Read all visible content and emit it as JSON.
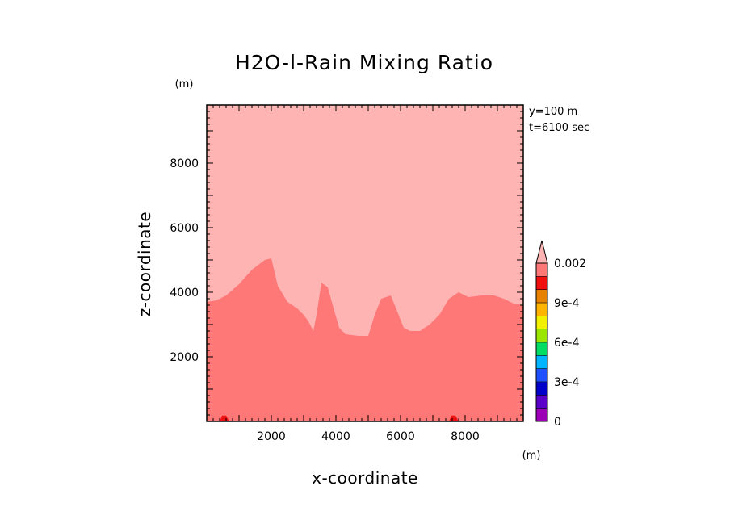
{
  "chart_data": {
    "type": "heatmap",
    "title": "H2O-l-Rain Mixing Ratio",
    "xlabel": "x-coordinate",
    "ylabel": "z-coordinate",
    "x_unit": "(m)",
    "y_unit": "(m)",
    "xlim": [
      0,
      9800
    ],
    "ylim": [
      0,
      9800
    ],
    "xticks": [
      "2000",
      "4000",
      "6000",
      "8000"
    ],
    "yticks": [
      "2000",
      "4000",
      "6000",
      "8000"
    ],
    "info_lines": [
      "y=100 m",
      "t=6100 sec"
    ],
    "contour_levels": [
      0,
      0.0001,
      0.0002,
      0.0003,
      0.0004,
      0.0005,
      0.0006,
      0.0007,
      0.0008,
      0.0009,
      0.001,
      0.0015,
      0.002
    ],
    "colorbar": {
      "labels": [
        {
          "text": "0.002",
          "value": 0.002
        },
        {
          "text": "9e-4",
          "value": 0.0009
        },
        {
          "text": "6e-4",
          "value": 0.0006
        },
        {
          "text": "3e-4",
          "value": 0.0003
        },
        {
          "text": "0",
          "value": 0
        }
      ],
      "colors": [
        "#9b00b4",
        "#5a00c8",
        "#0000c8",
        "#1e50ff",
        "#00b4ff",
        "#00dc64",
        "#9be600",
        "#f0f000",
        "#ffb400",
        "#e68200",
        "#f01010",
        "#ff7878",
        "#ffb4b4"
      ],
      "extend": "max"
    },
    "regions": [
      {
        "band": "0.0015-0.002",
        "color": "#ff7878",
        "boundary_x": [
          0,
          300,
          600,
          1000,
          1400,
          1800,
          2000,
          2200,
          2500,
          2800,
          3000,
          3150,
          3300,
          3400,
          3550,
          3750,
          3900,
          4100,
          4300,
          4700,
          5000,
          5200,
          5400,
          5700,
          5900,
          6100,
          6300,
          6600,
          6900,
          7200,
          7500,
          7800,
          8100,
          8500,
          8900,
          9200,
          9500,
          9800
        ],
        "boundary_z": [
          3700,
          3750,
          3900,
          4250,
          4700,
          5000,
          5050,
          4200,
          3700,
          3500,
          3300,
          3100,
          2800,
          3300,
          4300,
          4150,
          3600,
          2900,
          2700,
          2650,
          2650,
          3300,
          3800,
          3900,
          3400,
          2900,
          2800,
          2800,
          3000,
          3300,
          3800,
          4000,
          3850,
          3900,
          3900,
          3800,
          3650,
          3600
        ]
      },
      {
        "band": "0.001-0.0015",
        "color": "#f01010",
        "x_range": [
          400,
          700
        ],
        "z_range": [
          0,
          180
        ]
      },
      {
        "band": "0.001-0.0015",
        "color": "#f01010",
        "x_range": [
          7500,
          7800
        ],
        "z_range": [
          0,
          180
        ]
      }
    ],
    "background_band": "above 0.002",
    "background_color": "#ffb4b4"
  }
}
